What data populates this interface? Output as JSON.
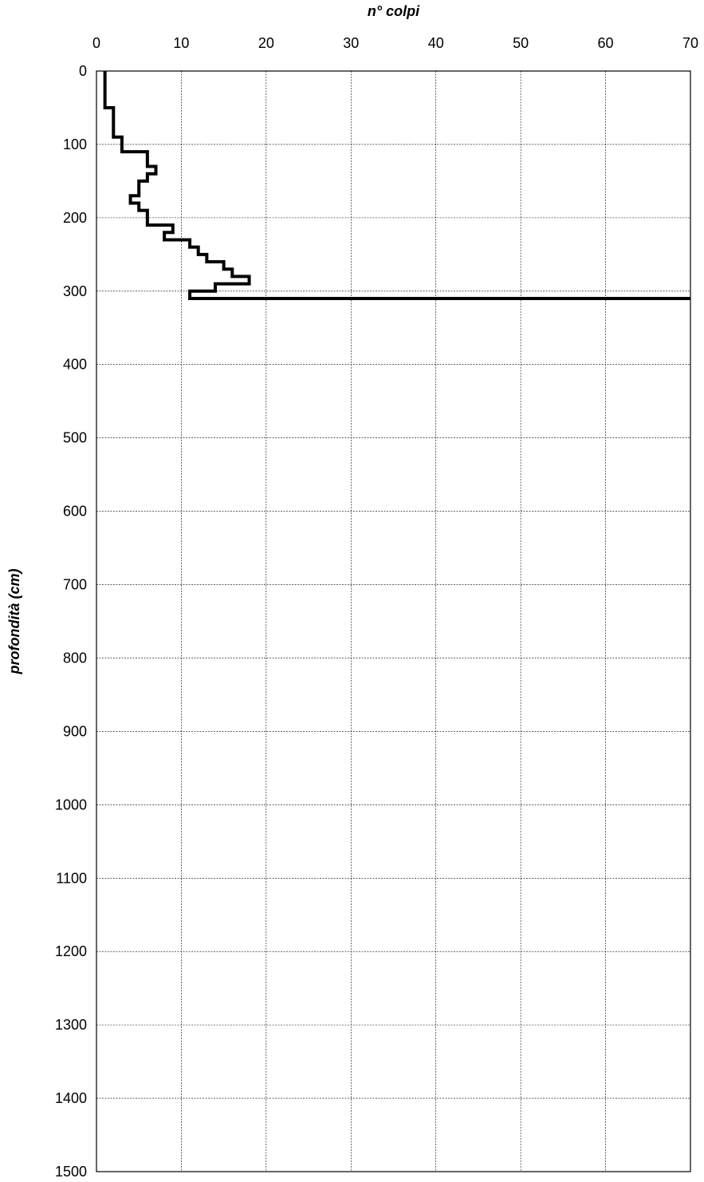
{
  "chart_data": {
    "type": "line",
    "title": "",
    "xlabel": "n° colpi",
    "ylabel": "profondità (cm)",
    "xlim": [
      0,
      70
    ],
    "ylim": [
      0,
      1500
    ],
    "y_inverted": true,
    "x_axis_position": "top",
    "grid": true,
    "legend": "none",
    "x_ticks": [
      0,
      10,
      20,
      30,
      40,
      50,
      60,
      70
    ],
    "y_ticks": [
      0,
      100,
      200,
      300,
      400,
      500,
      600,
      700,
      800,
      900,
      1000,
      1100,
      1200,
      1300,
      1400,
      1500
    ],
    "series": [
      {
        "color": "#000000",
        "step": true,
        "points": [
          {
            "depth_from": 0,
            "depth_to": 10,
            "blows": 1
          },
          {
            "depth_from": 10,
            "depth_to": 20,
            "blows": 1
          },
          {
            "depth_from": 20,
            "depth_to": 30,
            "blows": 1
          },
          {
            "depth_from": 30,
            "depth_to": 40,
            "blows": 1
          },
          {
            "depth_from": 40,
            "depth_to": 50,
            "blows": 1
          },
          {
            "depth_from": 50,
            "depth_to": 60,
            "blows": 2
          },
          {
            "depth_from": 60,
            "depth_to": 70,
            "blows": 2
          },
          {
            "depth_from": 70,
            "depth_to": 80,
            "blows": 2
          },
          {
            "depth_from": 80,
            "depth_to": 90,
            "blows": 2
          },
          {
            "depth_from": 90,
            "depth_to": 100,
            "blows": 3
          },
          {
            "depth_from": 100,
            "depth_to": 110,
            "blows": 3
          },
          {
            "depth_from": 110,
            "depth_to": 120,
            "blows": 6
          },
          {
            "depth_from": 120,
            "depth_to": 130,
            "blows": 6
          },
          {
            "depth_from": 130,
            "depth_to": 140,
            "blows": 7
          },
          {
            "depth_from": 140,
            "depth_to": 150,
            "blows": 6
          },
          {
            "depth_from": 150,
            "depth_to": 160,
            "blows": 5
          },
          {
            "depth_from": 160,
            "depth_to": 170,
            "blows": 5
          },
          {
            "depth_from": 170,
            "depth_to": 180,
            "blows": 4
          },
          {
            "depth_from": 180,
            "depth_to": 190,
            "blows": 5
          },
          {
            "depth_from": 190,
            "depth_to": 200,
            "blows": 6
          },
          {
            "depth_from": 200,
            "depth_to": 210,
            "blows": 6
          },
          {
            "depth_from": 210,
            "depth_to": 220,
            "blows": 9
          },
          {
            "depth_from": 220,
            "depth_to": 230,
            "blows": 8
          },
          {
            "depth_from": 230,
            "depth_to": 240,
            "blows": 11
          },
          {
            "depth_from": 240,
            "depth_to": 250,
            "blows": 12
          },
          {
            "depth_from": 250,
            "depth_to": 260,
            "blows": 13
          },
          {
            "depth_from": 260,
            "depth_to": 270,
            "blows": 15
          },
          {
            "depth_from": 270,
            "depth_to": 280,
            "blows": 16
          },
          {
            "depth_from": 280,
            "depth_to": 290,
            "blows": 18
          },
          {
            "depth_from": 290,
            "depth_to": 300,
            "blows": 14
          },
          {
            "depth_from": 300,
            "depth_to": 310,
            "blows": 11
          },
          {
            "depth_from": 310,
            "depth_to": 310,
            "blows": 70
          }
        ]
      }
    ]
  }
}
